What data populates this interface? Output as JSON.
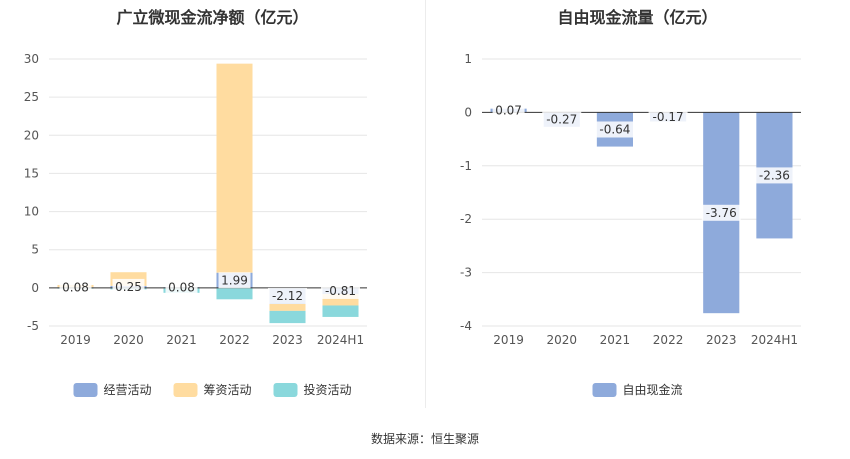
{
  "footer": {
    "label": "数据来源：",
    "source": "恒生聚源"
  },
  "chart_data": [
    {
      "type": "bar",
      "stacked": true,
      "title": "广立微现金流净额（亿元）",
      "categories": [
        "2019",
        "2020",
        "2021",
        "2022",
        "2023",
        "2024H1"
      ],
      "ylim": [
        -5,
        30
      ],
      "yticks": [
        -5,
        0,
        5,
        10,
        15,
        20,
        25,
        30
      ],
      "grid": true,
      "legend_position": "bottom",
      "series": [
        {
          "name": "经营活动",
          "color": "#8eaadb",
          "values": [
            0.08,
            0.25,
            0.08,
            1.99,
            -2.12,
            -0.81
          ]
        },
        {
          "name": "筹资活动",
          "color": "#ffdca0",
          "values": [
            0.3,
            1.8,
            -0.05,
            27.4,
            -0.9,
            -1.5
          ]
        },
        {
          "name": "投资活动",
          "color": "#8ad8dc",
          "values": [
            -0.03,
            -0.2,
            -0.6,
            -1.5,
            -1.6,
            -1.5
          ]
        }
      ],
      "data_labels": {
        "series": "经营活动",
        "values": [
          "0.08",
          "0.25",
          "0.08",
          "1.99",
          "-2.12",
          "-0.81"
        ]
      }
    },
    {
      "type": "bar",
      "title": "自由现金流量（亿元）",
      "categories": [
        "2019",
        "2020",
        "2021",
        "2022",
        "2023",
        "2024H1"
      ],
      "ylim": [
        -4,
        1
      ],
      "yticks": [
        -4,
        -3,
        -2,
        -1,
        0,
        1
      ],
      "grid": true,
      "legend_position": "bottom",
      "series": [
        {
          "name": "自由现金流",
          "color": "#8eaadb",
          "values": [
            0.07,
            -0.27,
            -0.64,
            -0.17,
            -3.76,
            -2.36
          ]
        }
      ],
      "data_labels": {
        "series": "自由现金流",
        "values": [
          "0.07",
          "-0.27",
          "-0.64",
          "-0.17",
          "-3.76",
          "-2.36"
        ]
      }
    }
  ]
}
